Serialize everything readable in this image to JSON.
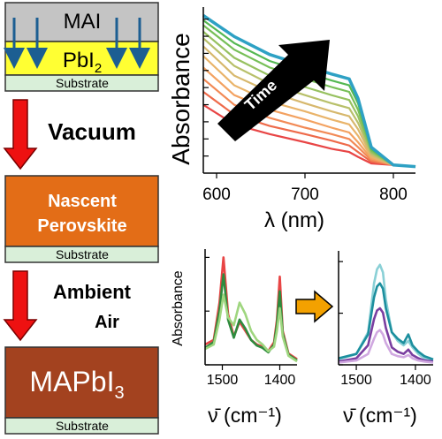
{
  "left_panel": {
    "layer_top": "MAI",
    "layer_pbi": "PbI",
    "layer_pbi_sub": "2",
    "substrate_label": "Substrate",
    "step1_label": "Vacuum",
    "nascent_line1": "Nascent",
    "nascent_line2": "Perovskite",
    "step2_label_line1": "Ambient",
    "step2_label_line2": "Air",
    "product": "MAPbI",
    "product_sub": "3"
  },
  "colors": {
    "mai_layer": "#c4c4c4",
    "pbi2_layer": "#ffff33",
    "substrate": "#d9efd9",
    "nascent": "#e36d17",
    "mapbi3": "#a3421f",
    "red_arrow": "#ee1111",
    "blue_arrow": "#1c5e92",
    "orange_arrow": "#f3a100"
  },
  "chart_data": [
    {
      "type": "line",
      "xlabel": "λ (nm)",
      "ylabel": "Absorbance",
      "xlim": [
        585,
        825
      ],
      "xticks": [
        600,
        700,
        800
      ],
      "yticks_shown": false,
      "annotation": "Time",
      "series_description_colors": [
        "#e84545",
        "#ee6a4a",
        "#f28a56",
        "#f3a261",
        "#e9b46a",
        "#d7b86d",
        "#b8c06a",
        "#97c160",
        "#77bf58",
        "#55b853",
        "#2ea1c4"
      ],
      "series": [
        {
          "x": [
            585,
            620,
            660,
            700,
            730,
            750,
            760,
            775,
            800,
            825
          ],
          "values": [
            0.42,
            0.3,
            0.24,
            0.19,
            0.15,
            0.13,
            0.1,
            0.06,
            0.05,
            0.04
          ]
        },
        {
          "x": [
            585,
            620,
            660,
            700,
            730,
            750,
            760,
            775,
            800,
            825
          ],
          "values": [
            0.5,
            0.36,
            0.29,
            0.24,
            0.2,
            0.17,
            0.13,
            0.07,
            0.05,
            0.04
          ]
        },
        {
          "x": [
            585,
            620,
            660,
            700,
            730,
            750,
            760,
            775,
            800,
            825
          ],
          "values": [
            0.58,
            0.42,
            0.34,
            0.28,
            0.24,
            0.21,
            0.16,
            0.08,
            0.05,
            0.04
          ]
        },
        {
          "x": [
            585,
            620,
            660,
            700,
            730,
            750,
            760,
            775,
            800,
            825
          ],
          "values": [
            0.65,
            0.48,
            0.39,
            0.33,
            0.28,
            0.25,
            0.19,
            0.09,
            0.05,
            0.04
          ]
        },
        {
          "x": [
            585,
            620,
            660,
            700,
            730,
            750,
            760,
            775,
            800,
            825
          ],
          "values": [
            0.72,
            0.54,
            0.44,
            0.38,
            0.33,
            0.3,
            0.23,
            0.1,
            0.05,
            0.04
          ]
        },
        {
          "x": [
            585,
            620,
            660,
            700,
            730,
            750,
            760,
            775,
            800,
            825
          ],
          "values": [
            0.78,
            0.6,
            0.5,
            0.43,
            0.38,
            0.35,
            0.27,
            0.11,
            0.05,
            0.04
          ]
        },
        {
          "x": [
            585,
            620,
            660,
            700,
            730,
            750,
            760,
            775,
            800,
            825
          ],
          "values": [
            0.83,
            0.66,
            0.55,
            0.48,
            0.43,
            0.4,
            0.31,
            0.12,
            0.05,
            0.04
          ]
        },
        {
          "x": [
            585,
            620,
            660,
            700,
            730,
            750,
            760,
            775,
            800,
            825
          ],
          "values": [
            0.87,
            0.71,
            0.6,
            0.53,
            0.48,
            0.45,
            0.35,
            0.13,
            0.05,
            0.04
          ]
        },
        {
          "x": [
            585,
            620,
            660,
            700,
            730,
            750,
            760,
            775,
            800,
            825
          ],
          "values": [
            0.91,
            0.76,
            0.65,
            0.58,
            0.53,
            0.5,
            0.39,
            0.14,
            0.05,
            0.04
          ]
        },
        {
          "x": [
            585,
            620,
            660,
            700,
            730,
            750,
            760,
            775,
            800,
            825
          ],
          "values": [
            0.94,
            0.8,
            0.69,
            0.62,
            0.57,
            0.54,
            0.43,
            0.15,
            0.05,
            0.04
          ]
        },
        {
          "x": [
            585,
            620,
            660,
            700,
            730,
            750,
            760,
            775,
            800,
            825
          ],
          "values": [
            0.97,
            0.84,
            0.73,
            0.66,
            0.61,
            0.58,
            0.46,
            0.16,
            0.05,
            0.04
          ]
        }
      ]
    },
    {
      "type": "line",
      "xlabel": "ν̄ (cm⁻¹)",
      "ylabel": "Absorbance",
      "xlim": [
        1530,
        1370
      ],
      "xticks": [
        1500,
        1400
      ],
      "yticks_shown": false,
      "series": [
        {
          "color": "#e84545",
          "x": [
            1530,
            1515,
            1505,
            1498,
            1490,
            1480,
            1470,
            1460,
            1450,
            1440,
            1430,
            1420,
            1410,
            1405,
            1400,
            1395,
            1385,
            1370
          ],
          "values": [
            0.18,
            0.22,
            0.55,
            0.95,
            0.45,
            0.25,
            0.38,
            0.3,
            0.22,
            0.18,
            0.16,
            0.12,
            0.2,
            0.4,
            0.78,
            0.3,
            0.1,
            0.05
          ]
        },
        {
          "color": "#2e8b3e",
          "x": [
            1530,
            1515,
            1505,
            1498,
            1490,
            1480,
            1470,
            1460,
            1450,
            1440,
            1430,
            1420,
            1410,
            1405,
            1400,
            1395,
            1385,
            1370
          ],
          "values": [
            0.15,
            0.2,
            0.48,
            0.8,
            0.4,
            0.24,
            0.4,
            0.32,
            0.22,
            0.17,
            0.15,
            0.11,
            0.18,
            0.36,
            0.65,
            0.28,
            0.09,
            0.04
          ]
        },
        {
          "color": "#9fd67f",
          "x": [
            1530,
            1515,
            1505,
            1498,
            1490,
            1480,
            1470,
            1460,
            1450,
            1440,
            1430,
            1420,
            1410,
            1405,
            1400,
            1395,
            1385,
            1370
          ],
          "values": [
            0.14,
            0.18,
            0.4,
            0.62,
            0.42,
            0.35,
            0.55,
            0.45,
            0.3,
            0.22,
            0.18,
            0.12,
            0.16,
            0.3,
            0.5,
            0.25,
            0.08,
            0.03
          ]
        }
      ]
    },
    {
      "type": "line",
      "xlabel": "ν̄ (cm⁻¹)",
      "ylabel": "",
      "xlim": [
        1530,
        1370
      ],
      "xticks": [
        1500,
        1400
      ],
      "yticks_shown": false,
      "series": [
        {
          "color": "#8ad0d6",
          "x": [
            1530,
            1500,
            1480,
            1470,
            1465,
            1460,
            1455,
            1450,
            1440,
            1430,
            1420,
            1412,
            1405,
            1395,
            1385,
            1370
          ],
          "values": [
            0.05,
            0.1,
            0.3,
            0.75,
            0.88,
            0.92,
            0.85,
            0.6,
            0.3,
            0.22,
            0.18,
            0.22,
            0.16,
            0.1,
            0.06,
            0.04
          ]
        },
        {
          "color": "#1c8f9e",
          "x": [
            1530,
            1500,
            1480,
            1470,
            1465,
            1460,
            1455,
            1450,
            1440,
            1430,
            1420,
            1412,
            1405,
            1395,
            1385,
            1370
          ],
          "values": [
            0.06,
            0.1,
            0.28,
            0.62,
            0.72,
            0.75,
            0.7,
            0.52,
            0.3,
            0.24,
            0.2,
            0.28,
            0.18,
            0.12,
            0.08,
            0.05
          ]
        },
        {
          "color": "#7a3ea0",
          "x": [
            1530,
            1500,
            1480,
            1470,
            1465,
            1460,
            1455,
            1450,
            1440,
            1430,
            1420,
            1412,
            1405,
            1395,
            1385,
            1370
          ],
          "values": [
            0.03,
            0.06,
            0.18,
            0.42,
            0.5,
            0.52,
            0.48,
            0.34,
            0.16,
            0.12,
            0.1,
            0.14,
            0.09,
            0.06,
            0.04,
            0.03
          ]
        },
        {
          "color": "#d0a8e0",
          "x": [
            1530,
            1500,
            1480,
            1470,
            1465,
            1460,
            1455,
            1450,
            1440,
            1430,
            1420,
            1412,
            1405,
            1395,
            1385,
            1370
          ],
          "values": [
            0.02,
            0.04,
            0.1,
            0.24,
            0.3,
            0.32,
            0.28,
            0.2,
            0.1,
            0.08,
            0.07,
            0.09,
            0.06,
            0.04,
            0.03,
            0.02
          ]
        }
      ]
    }
  ]
}
